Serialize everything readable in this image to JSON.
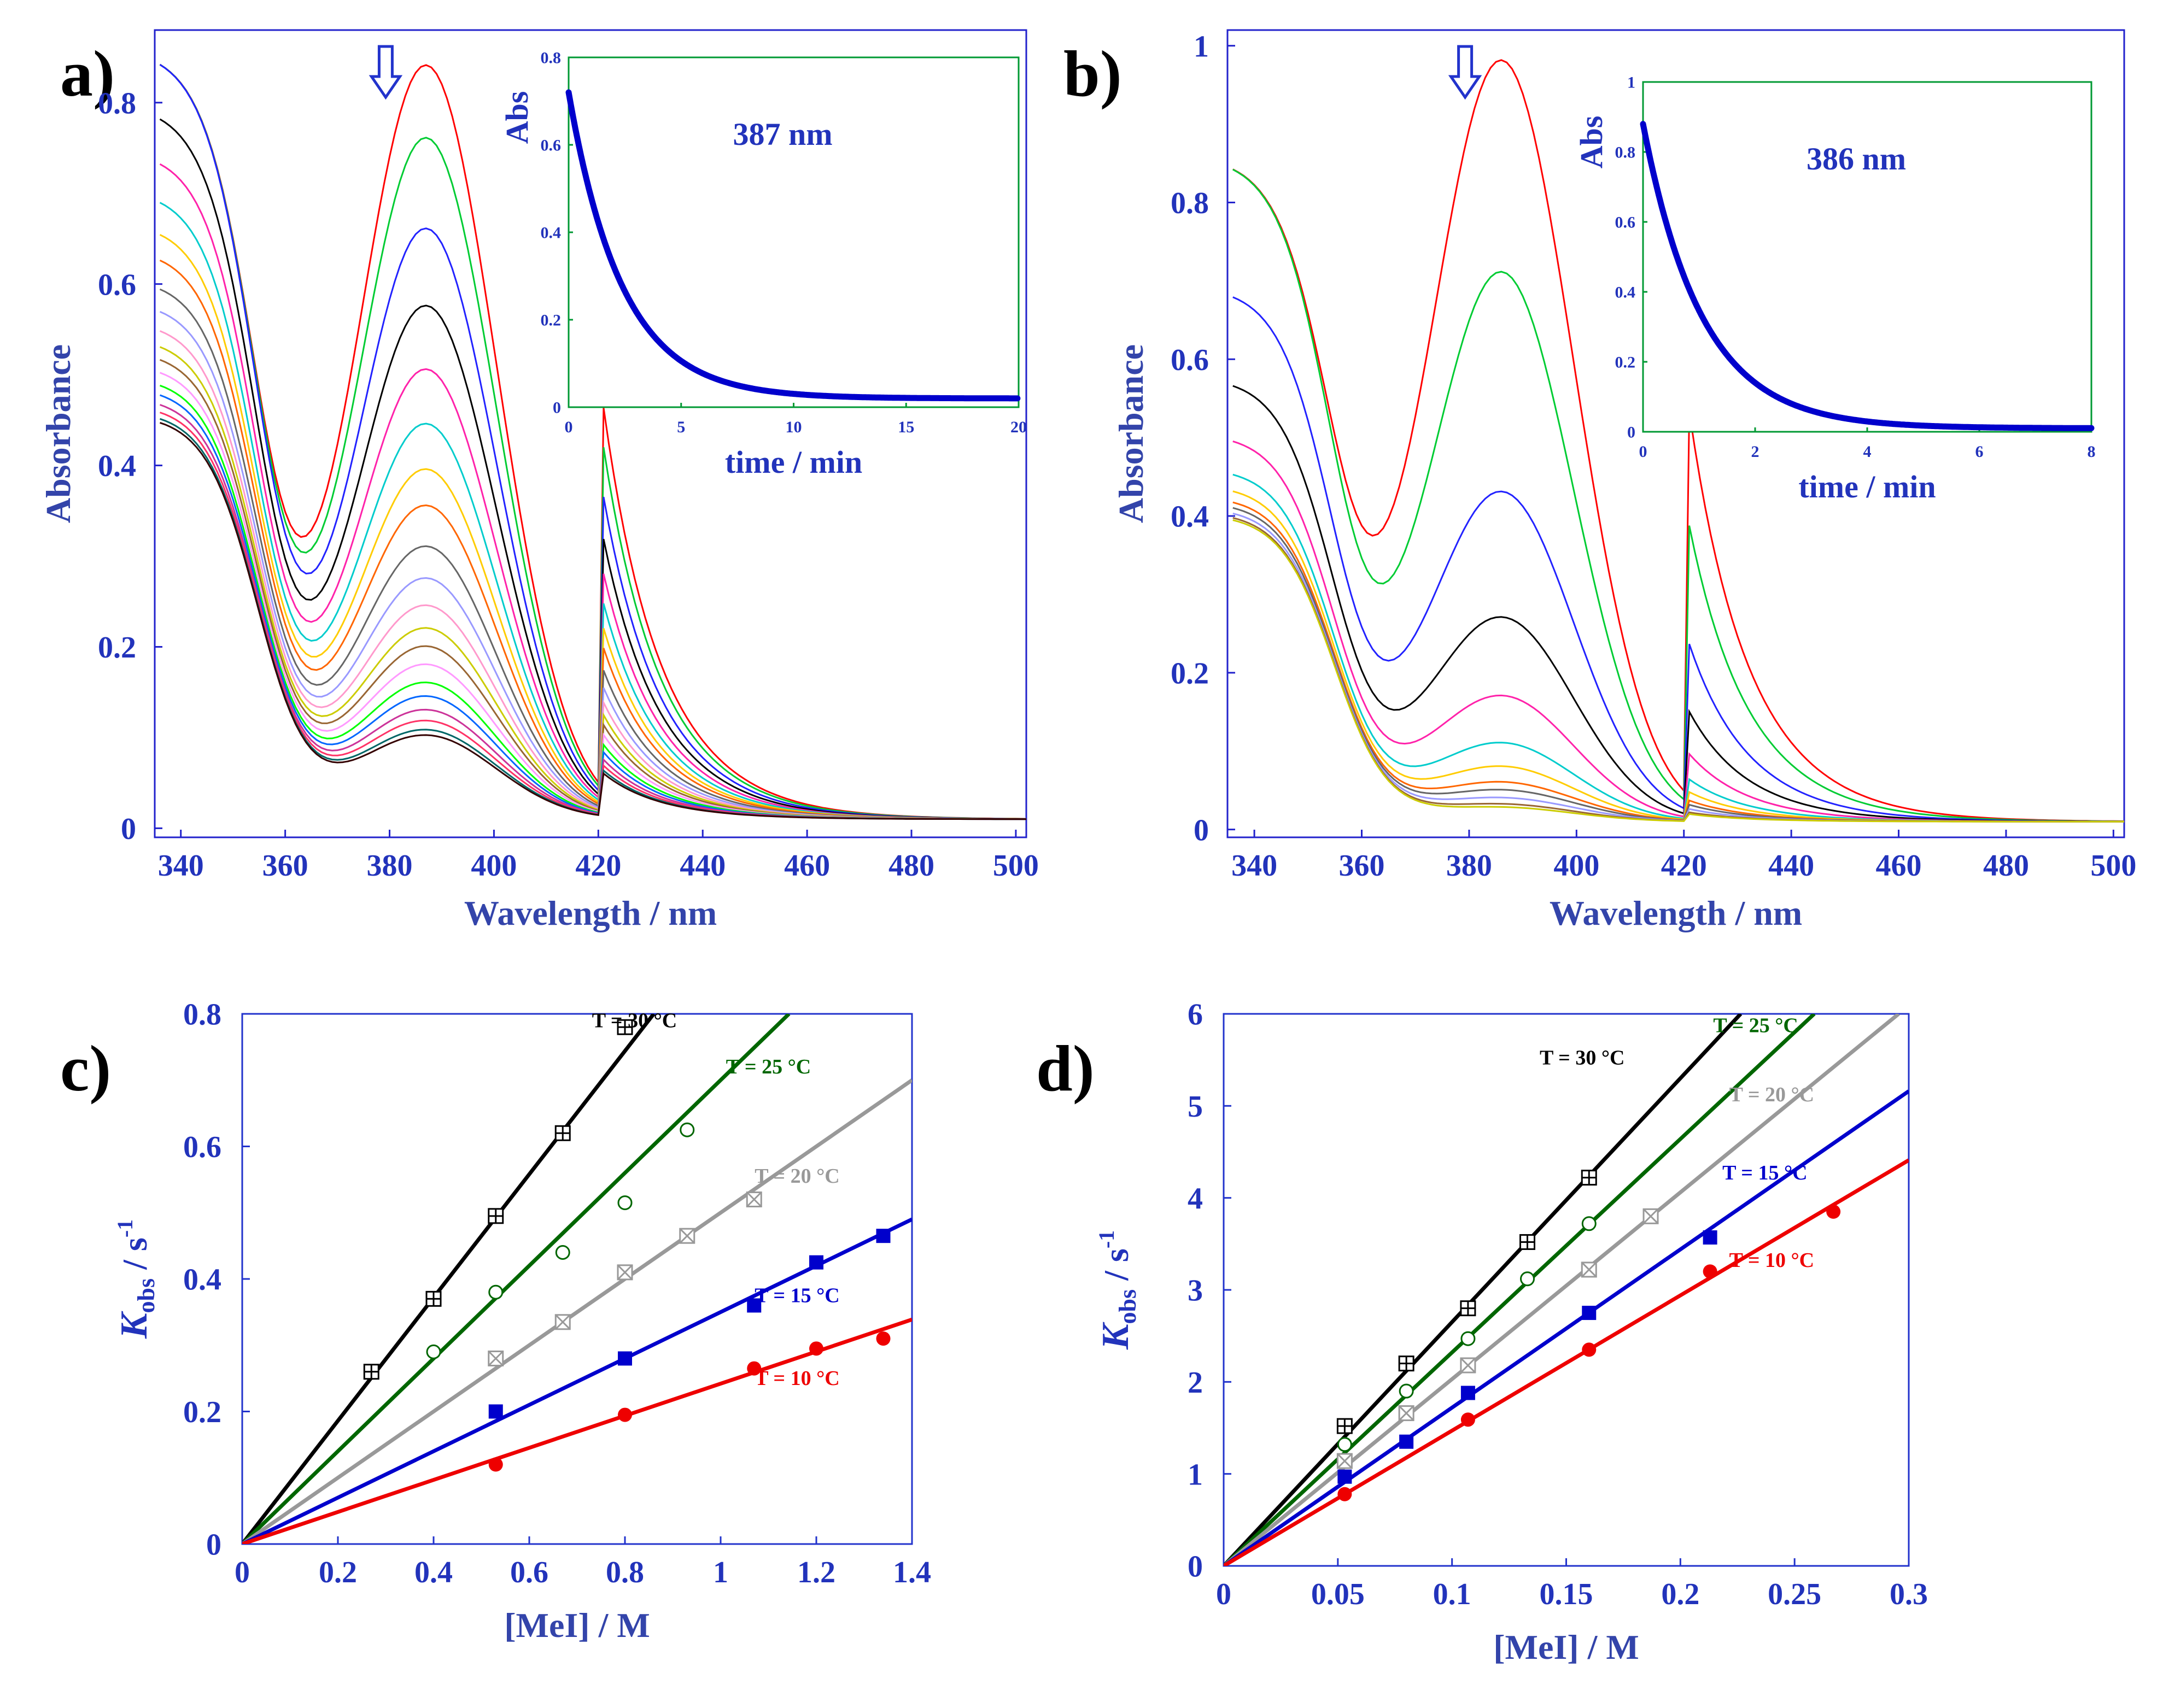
{
  "chart_data": [
    {
      "panel": "a)",
      "type": "line",
      "xlabel": "Wavelength / nm",
      "ylabel": "Absorbance",
      "xlim": [
        335,
        502
      ],
      "ylim": [
        -0.01,
        0.88
      ],
      "xticks": [
        340,
        360,
        380,
        400,
        420,
        440,
        460,
        480,
        500
      ],
      "yticks": [
        0,
        0.2,
        0.4,
        0.6,
        0.8
      ],
      "ytick_labels": [
        "0",
        "0.2",
        "0.4",
        "0.6",
        "0.8"
      ],
      "arrow": "down",
      "spectra": {
        "peak_nm": 387,
        "valley_nm": 363,
        "peak_values": [
          0.83,
          0.75,
          0.65,
          0.565,
          0.495,
          0.435,
          0.385,
          0.345,
          0.3,
          0.265,
          0.235,
          0.21,
          0.19,
          0.17,
          0.15,
          0.135,
          0.12,
          0.108,
          0.098,
          0.092
        ],
        "colors": [
          "#ff0000",
          "#00cc33",
          "#2222ff",
          "#000000",
          "#ff22aa",
          "#00cccc",
          "#ffcc00",
          "#ff6600",
          "#666666",
          "#9999ff",
          "#ff99cc",
          "#cccc00",
          "#996633",
          "#ff99ff",
          "#00ff00",
          "#0066ff",
          "#cc3399",
          "#ff3366",
          "#006666",
          "#330000"
        ]
      },
      "inset": {
        "type": "line",
        "label": "387 nm",
        "xlabel": "time / min",
        "ylabel": "Abs",
        "xlim": [
          0,
          20
        ],
        "ylim": [
          0,
          0.8
        ],
        "xticks": [
          0,
          5,
          10,
          15,
          20
        ],
        "yticks": [
          0,
          0.2,
          0.4,
          0.6,
          0.8
        ],
        "ytick_labels": [
          "0",
          "0.2",
          "0.4",
          "0.6",
          "0.8"
        ],
        "decay": {
          "a0": 0.72,
          "a_inf": 0.02,
          "k_per_min": 0.42
        },
        "color": "#0000cc"
      }
    },
    {
      "panel": "b)",
      "type": "line",
      "xlabel": "Wavelength / nm",
      "ylabel": "Absorbance",
      "xlim": [
        335,
        502
      ],
      "ylim": [
        -0.01,
        1.02
      ],
      "xticks": [
        340,
        360,
        380,
        400,
        420,
        440,
        460,
        480,
        500
      ],
      "yticks": [
        0,
        0.2,
        0.4,
        0.6,
        0.8,
        1
      ],
      "ytick_labels": [
        "0",
        "0.2",
        "0.4",
        "0.6",
        "0.8",
        "1"
      ],
      "arrow": "down",
      "spectra": {
        "peak_nm": 386,
        "valley_nm": 362,
        "peak_values": [
          0.97,
          0.7,
          0.42,
          0.26,
          0.16,
          0.1,
          0.07,
          0.05,
          0.04,
          0.03,
          0.022,
          0.018
        ],
        "colors": [
          "#ff0000",
          "#00cc33",
          "#2222ff",
          "#000000",
          "#ff22aa",
          "#00cccc",
          "#ffcc00",
          "#ff6600",
          "#666666",
          "#9999ff",
          "#996633",
          "#cccc00"
        ]
      },
      "inset": {
        "type": "line",
        "label": "386 nm",
        "xlabel": "time / min",
        "ylabel": "Abs",
        "xlim": [
          0,
          8
        ],
        "ylim": [
          0,
          1
        ],
        "xticks": [
          0,
          2,
          4,
          6,
          8
        ],
        "yticks": [
          0,
          0.2,
          0.4,
          0.6,
          0.8,
          1
        ],
        "ytick_labels": [
          "0",
          "0.2",
          "0.4",
          "0.6",
          "0.8",
          "1"
        ],
        "decay": {
          "a0": 0.88,
          "a_inf": 0.01,
          "k_per_min": 0.95
        },
        "color": "#0000cc"
      }
    },
    {
      "panel": "c)",
      "type": "scatter",
      "xlabel": "[MeI] / M",
      "ylabel_main": "K",
      "ylabel_sub": "obs",
      "ylabel_unit": " / s",
      "ylabel_sup": "-1",
      "xlim": [
        0,
        1.4
      ],
      "ylim": [
        0,
        0.8
      ],
      "xticks": [
        0,
        0.2,
        0.4,
        0.6,
        0.8,
        1,
        1.2,
        1.4
      ],
      "xtick_labels": [
        "0",
        "0.2",
        "0.4",
        "0.6",
        "0.8",
        "1",
        "1.2",
        "1.4"
      ],
      "yticks": [
        0,
        0.2,
        0.4,
        0.6,
        0.8
      ],
      "ytick_labels": [
        "0",
        "0.2",
        "0.4",
        "0.6",
        "0.8"
      ],
      "series": [
        {
          "name": "T = 30 °C",
          "color": "#000000",
          "marker": "square-cross",
          "slope": 0.93,
          "x": [
            0.27,
            0.4,
            0.53,
            0.67,
            0.8
          ],
          "y": [
            0.26,
            0.37,
            0.495,
            0.62,
            0.78
          ],
          "label_at": [
            0.82,
            0.78
          ]
        },
        {
          "name": "T = 25 °C",
          "color": "#006600",
          "marker": "circle-open",
          "slope": 0.7,
          "x": [
            0.4,
            0.53,
            0.67,
            0.8,
            0.93
          ],
          "y": [
            0.29,
            0.38,
            0.44,
            0.515,
            0.625
          ],
          "label_at": [
            1.1,
            0.71
          ]
        },
        {
          "name": "T = 20 °C",
          "color": "#999999",
          "marker": "square-x",
          "slope": 0.5,
          "x": [
            0.53,
            0.67,
            0.8,
            0.93,
            1.07
          ],
          "y": [
            0.28,
            0.335,
            0.41,
            0.465,
            0.52
          ],
          "label_at": [
            1.16,
            0.545
          ]
        },
        {
          "name": "T = 15 °C",
          "color": "#0000cc",
          "marker": "square-filled",
          "slope": 0.35,
          "x": [
            0.53,
            0.8,
            1.07,
            1.2,
            1.34
          ],
          "y": [
            0.2,
            0.28,
            0.36,
            0.425,
            0.465
          ],
          "label_at": [
            1.16,
            0.365
          ]
        },
        {
          "name": "T = 10 °C",
          "color": "#ee0000",
          "marker": "circle-filled",
          "slope": 0.242,
          "x": [
            0.53,
            0.8,
            1.07,
            1.2,
            1.34
          ],
          "y": [
            0.12,
            0.195,
            0.265,
            0.295,
            0.31
          ],
          "label_at": [
            1.16,
            0.24
          ]
        }
      ]
    },
    {
      "panel": "d)",
      "type": "scatter",
      "xlabel": "[MeI] / M",
      "ylabel_main": "K",
      "ylabel_sub": "obs",
      "ylabel_unit": " / s",
      "ylabel_sup": "-1",
      "xlim": [
        0,
        0.3
      ],
      "ylim": [
        0,
        6
      ],
      "xticks": [
        0,
        0.05,
        0.1,
        0.15,
        0.2,
        0.25,
        0.3
      ],
      "xtick_labels": [
        "0",
        "0.05",
        "0.1",
        "0.15",
        "0.2",
        "0.25",
        "0.3"
      ],
      "yticks": [
        0,
        1,
        2,
        3,
        4,
        5,
        6
      ],
      "ytick_labels": [
        "0",
        "1",
        "2",
        "3",
        "4",
        "5",
        "6"
      ],
      "series": [
        {
          "name": "T = 30 °C",
          "color": "#000000",
          "marker": "square-cross",
          "slope": 26.5,
          "x": [
            0.053,
            0.08,
            0.107,
            0.133,
            0.16
          ],
          "y": [
            1.52,
            2.2,
            2.8,
            3.52,
            4.22
          ],
          "label_at": [
            0.157,
            5.45
          ]
        },
        {
          "name": "T = 25 °C",
          "color": "#006600",
          "marker": "circle-open",
          "slope": 23.2,
          "x": [
            0.053,
            0.08,
            0.107,
            0.133,
            0.16
          ],
          "y": [
            1.32,
            1.9,
            2.47,
            3.12,
            3.72
          ],
          "label_at": [
            0.233,
            5.8
          ]
        },
        {
          "name": "T = 20 °C",
          "color": "#999999",
          "marker": "square-x",
          "slope": 20.3,
          "x": [
            0.053,
            0.08,
            0.107,
            0.16,
            0.187
          ],
          "y": [
            1.14,
            1.66,
            2.18,
            3.22,
            3.8
          ],
          "label_at": [
            0.24,
            5.05
          ]
        },
        {
          "name": "T = 15 °C",
          "color": "#0000cc",
          "marker": "square-filled",
          "slope": 17.2,
          "x": [
            0.053,
            0.08,
            0.107,
            0.16,
            0.213
          ],
          "y": [
            0.97,
            1.35,
            1.88,
            2.75,
            3.57
          ],
          "label_at": [
            0.237,
            4.2
          ]
        },
        {
          "name": "T = 10 °C",
          "color": "#ee0000",
          "marker": "circle-filled",
          "slope": 14.7,
          "x": [
            0.053,
            0.107,
            0.16,
            0.213,
            0.267
          ],
          "y": [
            0.78,
            1.59,
            2.35,
            3.2,
            3.85
          ],
          "label_at": [
            0.24,
            3.25
          ]
        }
      ]
    }
  ]
}
